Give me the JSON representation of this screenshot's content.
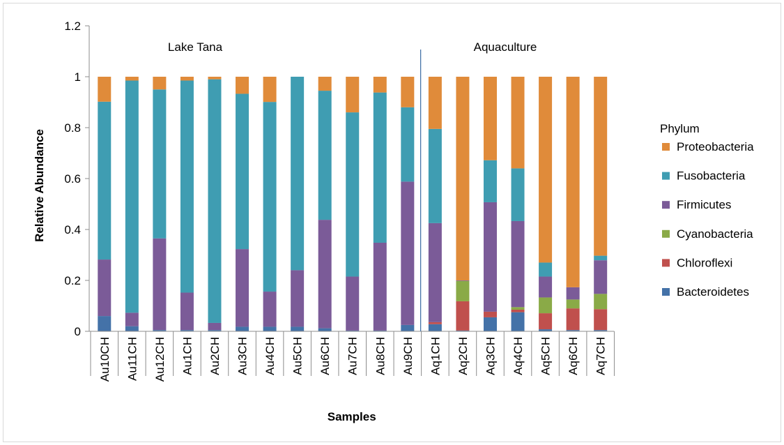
{
  "chart_data": {
    "type": "bar",
    "stacked": true,
    "title": "",
    "xlabel": "Samples",
    "ylabel": "Relative Abundance",
    "ylim": [
      0,
      1.2
    ],
    "yticks": [
      "0",
      "0.2",
      "0.4",
      "0.6",
      "0.8",
      "1",
      "1.2"
    ],
    "grid": false,
    "legend_position": "right",
    "legend_title": "Phylum",
    "categories": [
      "Au10CH",
      "Au11CH",
      "Au12CH",
      "Au1CH",
      "Au2CH",
      "Au3CH",
      "Au4CH",
      "Au5CH",
      "Au6CH",
      "Au7CH",
      "Au8CH",
      "Au9CH",
      "Aq1CH",
      "Aq2CH",
      "Aq3CH",
      "Aq4CH",
      "Aq5CH",
      "Aq6CH",
      "Aq7CH"
    ],
    "groups": [
      {
        "label": "Lake Tana",
        "first": 0,
        "last": 11
      },
      {
        "label": "Aquaculture",
        "first": 12,
        "last": 18
      }
    ],
    "series": [
      {
        "name": "Bacteroidetes",
        "color": "#4472a8",
        "values": [
          0.06,
          0.02,
          0.005,
          0.005,
          0.005,
          0.018,
          0.018,
          0.018,
          0.012,
          0.003,
          0.003,
          0.025,
          0.028,
          0.003,
          0.055,
          0.075,
          0.008,
          0.005,
          0.005
        ]
      },
      {
        "name": "Chloroflexi",
        "color": "#c0504d",
        "values": [
          0,
          0,
          0,
          0,
          0,
          0,
          0,
          0,
          0,
          0,
          0,
          0,
          0.008,
          0.115,
          0.022,
          0.01,
          0.063,
          0.085,
          0.082
        ]
      },
      {
        "name": "Cyanobacteria",
        "color": "#8aaa47",
        "values": [
          0,
          0,
          0,
          0,
          0,
          0,
          0,
          0,
          0,
          0,
          0,
          0,
          0,
          0.08,
          0,
          0.01,
          0.062,
          0.035,
          0.06
        ]
      },
      {
        "name": "Firmicutes",
        "color": "#7b5b98",
        "values": [
          0.222,
          0.053,
          0.36,
          0.147,
          0.028,
          0.305,
          0.138,
          0.222,
          0.426,
          0.212,
          0.345,
          0.563,
          0.389,
          0.002,
          0.43,
          0.338,
          0.082,
          0.048,
          0.132
        ]
      },
      {
        "name": "Fusobacteria",
        "color": "#3f9db2",
        "values": [
          0.62,
          0.912,
          0.585,
          0.833,
          0.957,
          0.61,
          0.745,
          0.76,
          0.507,
          0.645,
          0.59,
          0.292,
          0.37,
          0,
          0.165,
          0.207,
          0.055,
          0,
          0.018
        ]
      },
      {
        "name": "Proteobacteria",
        "color": "#e08b3a",
        "values": [
          0.098,
          0.015,
          0.05,
          0.015,
          0.01,
          0.067,
          0.099,
          0,
          0.055,
          0.14,
          0.062,
          0.12,
          0.205,
          0.8,
          0.328,
          0.36,
          0.73,
          0.827,
          0.703
        ]
      }
    ],
    "legend_order": [
      "Proteobacteria",
      "Fusobacteria",
      "Firmicutes",
      "Cyanobacteria",
      "Chloroflexi",
      "Bacteroidetes"
    ]
  }
}
